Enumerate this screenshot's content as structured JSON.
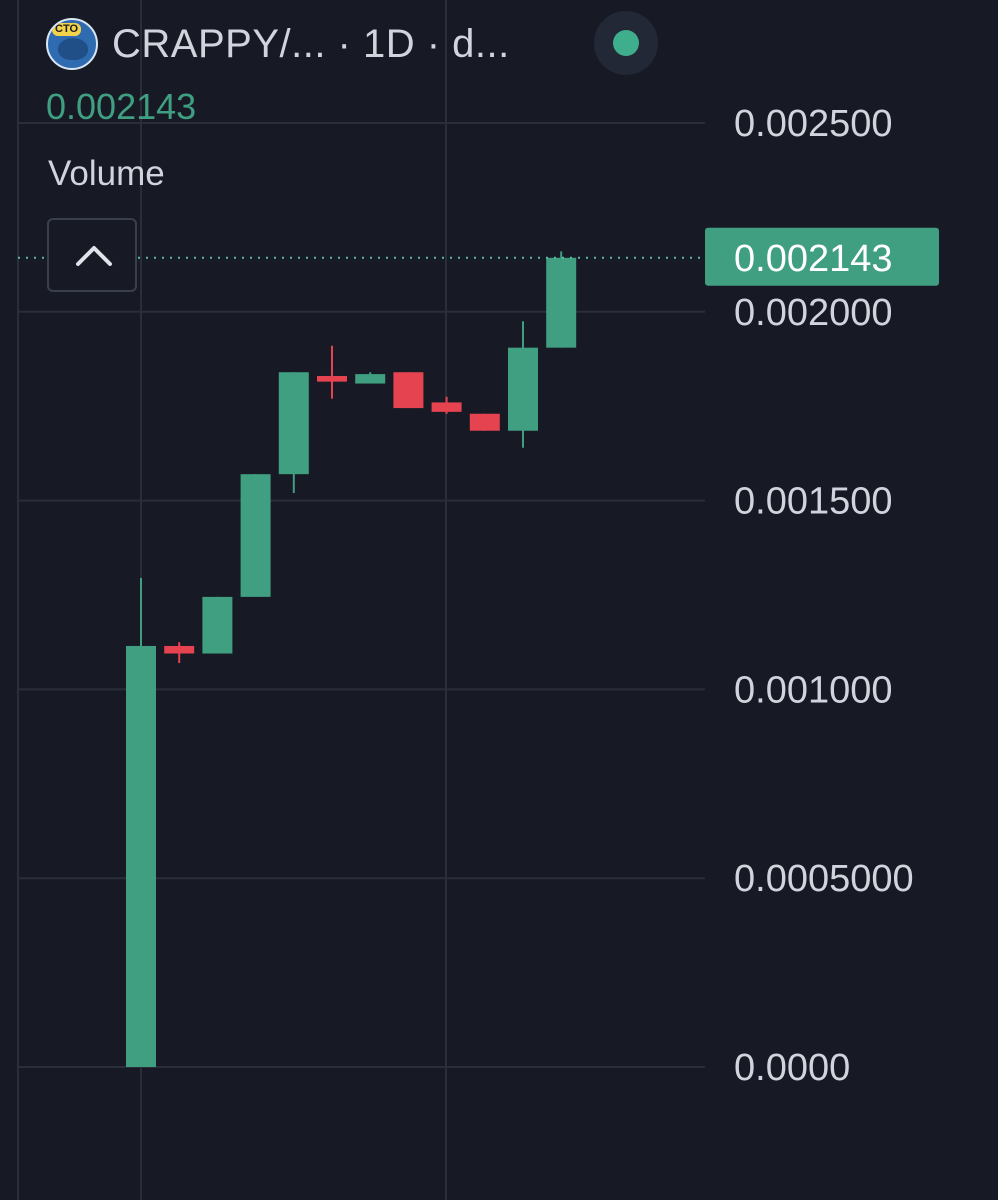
{
  "header": {
    "title": "CRAPPY/...  · 1D · d...",
    "logo_text": "CTO",
    "last_price": "0.002143",
    "volume_label": "Volume"
  },
  "colors": {
    "background": "#171a24",
    "up": "#3f9f80",
    "down": "#e4434f",
    "grid": "#2a2e39",
    "axis_text": "#d1d4dc",
    "price_tag": "#3f9f80"
  },
  "chart_data": {
    "type": "candlestick",
    "interval": "1D",
    "y_ticks": [
      "0.002500",
      "0.002000",
      "0.001500",
      "0.001000",
      "0.0005000",
      "0.0000"
    ],
    "ylim": [
      0,
      0.0025
    ],
    "current_price": 0.002143,
    "current_price_label": "0.002143",
    "grid": true,
    "candles": [
      {
        "open": 0.0,
        "high": 0.001295,
        "low": 0.0,
        "close": 0.001115
      },
      {
        "open": 0.001115,
        "high": 0.001125,
        "low": 0.00107,
        "close": 0.001095
      },
      {
        "open": 0.001095,
        "high": 0.001245,
        "low": 0.001095,
        "close": 0.001245
      },
      {
        "open": 0.001245,
        "high": 0.00157,
        "low": 0.001245,
        "close": 0.00157
      },
      {
        "open": 0.00157,
        "high": 0.00184,
        "low": 0.00152,
        "close": 0.00184
      },
      {
        "open": 0.00183,
        "high": 0.00191,
        "low": 0.00177,
        "close": 0.001815
      },
      {
        "open": 0.00181,
        "high": 0.00184,
        "low": 0.00181,
        "close": 0.001835
      },
      {
        "open": 0.00184,
        "high": 0.00184,
        "low": 0.001745,
        "close": 0.001745
      },
      {
        "open": 0.00176,
        "high": 0.001775,
        "low": 0.00173,
        "close": 0.001735
      },
      {
        "open": 0.00173,
        "high": 0.00173,
        "low": 0.001685,
        "close": 0.001685
      },
      {
        "open": 0.001685,
        "high": 0.001975,
        "low": 0.00164,
        "close": 0.001905
      },
      {
        "open": 0.001905,
        "high": 0.00216,
        "low": 0.001905,
        "close": 0.002143
      }
    ]
  }
}
